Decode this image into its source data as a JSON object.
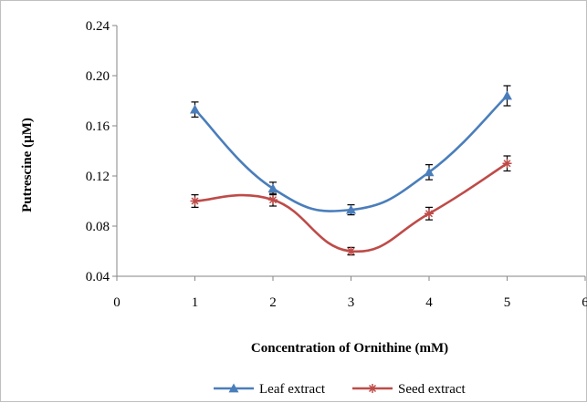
{
  "chart_data": {
    "type": "line",
    "xlabel": "Concentration of Ornithine (mM)",
    "ylabel": "Putrescine (µM)",
    "xlim": [
      0,
      6
    ],
    "ylim": [
      0.04,
      0.24
    ],
    "x_ticks": [
      "0",
      "1",
      "2",
      "3",
      "4",
      "5",
      "6"
    ],
    "y_ticks": [
      "0.04",
      "0.08",
      "0.12",
      "0.16",
      "0.20",
      "0.24"
    ],
    "x": [
      1,
      2,
      3,
      4,
      5
    ],
    "series": [
      {
        "name": "Leaf extract",
        "values": [
          0.173,
          0.11,
          0.093,
          0.123,
          0.184
        ],
        "errors": [
          0.006,
          0.005,
          0.004,
          0.006,
          0.008
        ],
        "color": "#4a7ebb",
        "marker": "triangle"
      },
      {
        "name": "Seed extract",
        "values": [
          0.1,
          0.101,
          0.06,
          0.09,
          0.13
        ],
        "errors": [
          0.005,
          0.005,
          0.003,
          0.005,
          0.006
        ],
        "color": "#be4b48",
        "marker": "asterisk"
      }
    ],
    "grid": false,
    "legend_position": "bottom"
  }
}
